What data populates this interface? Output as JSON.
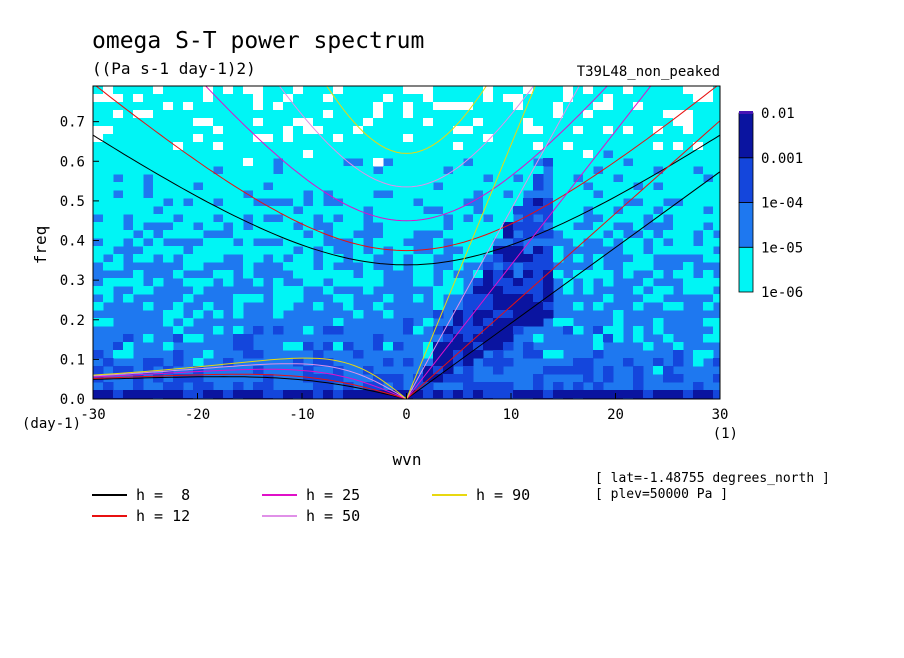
{
  "chart_data": {
    "type": "heatmap",
    "title": "omega S-T power spectrum",
    "units": "((Pa s-1 day-1)2)",
    "run_label": "T39L48_non_peaked",
    "xlabel": "wvn",
    "ylabel": "freq",
    "x_unit": "(1)",
    "y_unit": "(day-1)",
    "xlim": [
      -30,
      30
    ],
    "ylim": [
      0,
      0.79
    ],
    "x_ticks": [
      -30,
      -20,
      -10,
      0,
      10,
      20,
      30
    ],
    "x_tick_labels": [
      "-30",
      "-20",
      "-10",
      "0",
      "10",
      "20",
      "30"
    ],
    "y_ticks": [
      0,
      0.1,
      0.2,
      0.3,
      0.4,
      0.5,
      0.6,
      0.7
    ],
    "y_tick_labels": [
      "0.0",
      "0.1",
      "0.2",
      "0.3",
      "0.4",
      "0.5",
      "0.6",
      "0.7"
    ],
    "colorbar": {
      "scale": "log",
      "levels": [
        1e-06,
        1e-05,
        0.0001,
        0.001,
        0.01
      ],
      "level_labels": [
        "1e-06",
        "1e-05",
        "1e-04",
        "0.001",
        "0.01"
      ],
      "colors": [
        "#00f5f5",
        "#1e78f0",
        "#1446dc",
        "#0a14a0",
        "#4614b4"
      ]
    },
    "series": [
      {
        "name": "h =  8",
        "h": 8,
        "color": "#000000"
      },
      {
        "name": "h = 12",
        "h": 12,
        "color": "#e81010"
      },
      {
        "name": "h = 25",
        "h": 25,
        "color": "#e010c8"
      },
      {
        "name": "h = 50",
        "h": 50,
        "color": "#e090e8"
      },
      {
        "name": "h = 90",
        "h": 90,
        "color": "#e8d810"
      }
    ],
    "annotations": [
      "[ lat=-1.48755 degrees_north ]",
      "[ plev=50000 Pa ]"
    ]
  }
}
